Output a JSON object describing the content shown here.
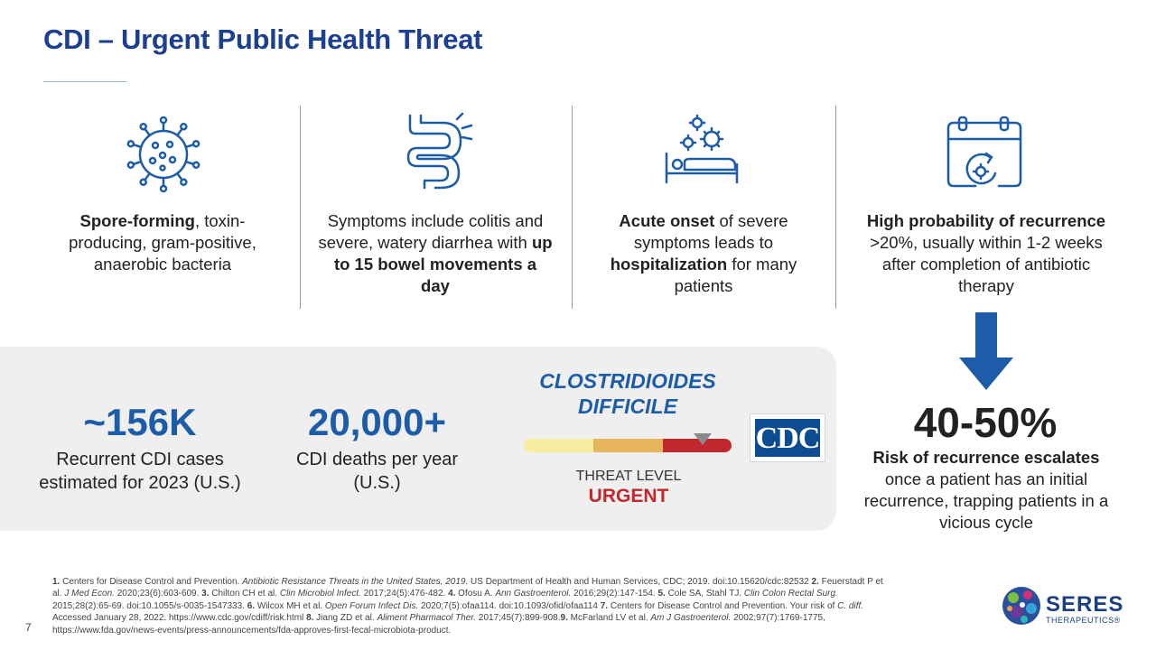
{
  "title": "CDI – Urgent Public Health Threat",
  "columns": [
    {
      "icon": "bacteria-icon",
      "parts": [
        {
          "t": "Spore-forming",
          "b": true
        },
        {
          "t": ", toxin-producing, gram-positive, anaerobic bacteria",
          "b": false
        }
      ]
    },
    {
      "icon": "intestine-icon",
      "parts": [
        {
          "t": "Symptoms include colitis and severe, watery diarrhea with ",
          "b": false
        },
        {
          "t": "up to 15 bowel movements a day",
          "b": true
        }
      ]
    },
    {
      "icon": "hospital-bed-icon",
      "parts": [
        {
          "t": "Acute onset",
          "b": true
        },
        {
          "t": " of severe symptoms leads to ",
          "b": false
        },
        {
          "t": "hospitalization",
          "b": true
        },
        {
          "t": " for many patients",
          "b": false
        }
      ]
    },
    {
      "icon": "calendar-recurrence-icon",
      "parts": [
        {
          "t": "High probability of recurrence",
          "b": true
        },
        {
          "t": " >20%, usually within 1-2 weeks after completion of antibiotic therapy",
          "b": false
        }
      ]
    }
  ],
  "stats": {
    "cases_value": "~156K",
    "cases_label": "Recurrent CDI cases estimated for 2023 (U.S.)",
    "deaths_value": "20,000+",
    "deaths_label": "CDI deaths per year (U.S.)"
  },
  "threat": {
    "organism": "CLOSTRIDIOIDES DIFFICILE",
    "level_label": "THREAT LEVEL",
    "level_value": "URGENT",
    "colors": [
      "#f7eda1",
      "#e6b55c",
      "#c0282e"
    ],
    "marker_segment": 2
  },
  "cdc_logo": "CDC",
  "recurrence": {
    "value": "40-50%",
    "bold": "Risk of recurrence escalates",
    "rest": " once a patient has an initial recurrence, trapping patients in a vicious cycle"
  },
  "references": [
    {
      "t": "1.",
      "b": true
    },
    {
      "t": " Centers for Disease Control and Prevention. "
    },
    {
      "t": "Antibiotic Resistance Threats in the United States, 2019.",
      "i": true
    },
    {
      "t": " US Department of Health and Human Services, CDC; 2019. doi:10.15620/cdc:82532 "
    },
    {
      "t": "2.",
      "b": true
    },
    {
      "t": " Feuerstadt P et al. "
    },
    {
      "t": "J Med Econ.",
      "i": true
    },
    {
      "t": " 2020;23(6):603-609. "
    },
    {
      "t": "3.",
      "b": true
    },
    {
      "t": " Chilton CH et al. "
    },
    {
      "t": "Clin Microbiol Infect.",
      "i": true
    },
    {
      "t": " 2017;24(5):476-482. "
    },
    {
      "t": "4.",
      "b": true
    },
    {
      "t": " Ofosu A. "
    },
    {
      "t": "Ann Gastroenterol.",
      "i": true
    },
    {
      "t": " 2016;29(2):147-154. "
    },
    {
      "t": "5.",
      "b": true
    },
    {
      "t": " Cole SA, Stahl TJ. "
    },
    {
      "t": "Clin Colon Rectal Surg.",
      "i": true
    },
    {
      "t": " 2015;28(2):65-69. doi:10.1055/s-0035-1547333. "
    },
    {
      "t": "6.",
      "b": true
    },
    {
      "t": " Wilcox MH et al. "
    },
    {
      "t": "Open Forum Infect Dis.",
      "i": true
    },
    {
      "t": " 2020;7(5):ofaa114. doi:10.1093/ofid/ofaa114 "
    },
    {
      "t": "7.",
      "b": true
    },
    {
      "t": " Centers for Disease Control and Prevention. Your risk of "
    },
    {
      "t": "C. diff.",
      "i": true
    },
    {
      "t": " Accessed January 28, 2022. https://www.cdc.gov/cdiff/risk.html "
    },
    {
      "t": "8.",
      "b": true
    },
    {
      "t": " Jiang ZD et al. "
    },
    {
      "t": "Aliment Pharmacol Ther.",
      "i": true
    },
    {
      "t": " 2017;45(7):899-908."
    },
    {
      "t": "9.",
      "b": true
    },
    {
      "t": " McFarland LV et al. "
    },
    {
      "t": "Am J Gastroenterol.",
      "i": true
    },
    {
      "t": " 2002;97(7):1769-1775, https://www.fda.gov/news-events/press-announcements/fda-approves-first-fecal-microbiota-product."
    }
  ],
  "page_number": "7",
  "logo": {
    "name": "SERES",
    "tagline": "THERAPEUTICS®"
  }
}
